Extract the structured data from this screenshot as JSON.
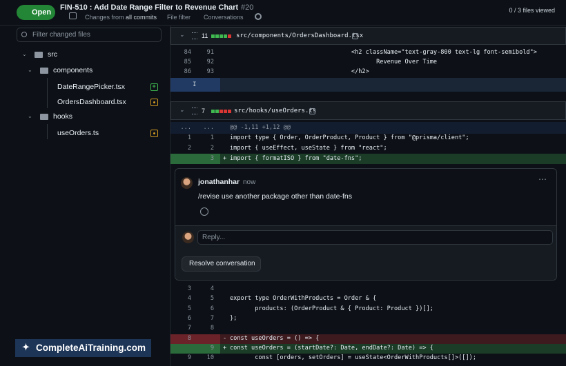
{
  "header": {
    "state": "Open",
    "title": "FIN-510 : Add Date Range Filter to Revenue Chart",
    "number": "#20",
    "changes_label": "Changes from",
    "changes_value": "all commits",
    "file_filter": "File filter",
    "conversations": "Conversations",
    "files_viewed": "0 / 3 files viewed"
  },
  "sidebar": {
    "filter_placeholder": "Filter changed files",
    "tree": [
      {
        "label": "src",
        "children": [
          {
            "label": "components",
            "children": [
              {
                "label": "DateRangePicker.tsx",
                "status": "added"
              },
              {
                "label": "OrdersDashboard.tsx",
                "status": "modified"
              }
            ]
          },
          {
            "label": "hooks",
            "children": [
              {
                "label": "useOrders.ts",
                "status": "modified"
              }
            ]
          }
        ]
      }
    ]
  },
  "files": [
    {
      "changes": 11,
      "path": "src/components/OrdersDashboard.tsx",
      "lines": [
        {
          "old": 84,
          "new": 91,
          "code": "                                  <h2 className=\"text-gray-800 text-lg font-semibold\">"
        },
        {
          "old": 85,
          "new": 92,
          "code": "                                         Revenue Over Time"
        },
        {
          "old": 86,
          "new": 93,
          "code": "                                  </h2>"
        }
      ]
    },
    {
      "changes": 7,
      "path": "src/hooks/useOrders.ts",
      "hunk": {
        "old": "...",
        "new": "...",
        "text": "@@ -1,11 +1,12 @@"
      },
      "lines_before": [
        {
          "old": 1,
          "new": 1,
          "code": "import type { Order, OrderProduct, Product } from \"@prisma/client\";"
        },
        {
          "old": 2,
          "new": 2,
          "code": "import { useEffect, useState } from \"react\";"
        },
        {
          "new": 3,
          "sign": "+",
          "code": "import { formatISO } from \"date-fns\";"
        }
      ],
      "comment": {
        "author": "jonathanhar",
        "time": "now",
        "body": "/revise use another package other than date-fns",
        "reply_placeholder": "Reply...",
        "resolve": "Resolve conversation"
      },
      "lines_after": [
        {
          "old": 3,
          "new": 4
        },
        {
          "old": 4,
          "new": 5,
          "code": "export type OrderWithProducts = Order & {"
        },
        {
          "old": 5,
          "new": 6,
          "code": "       products: (OrderProduct & { Product: Product })[];"
        },
        {
          "old": 6,
          "new": 7,
          "code": "};"
        },
        {
          "old": 7,
          "new": 8
        },
        {
          "old": 8,
          "sign": "-",
          "code": "const useOrders = () => {"
        },
        {
          "new": 9,
          "sign": "+",
          "code": "const useOrders = (startDate?: Date, endDate?: Date) => {"
        },
        {
          "old": 9,
          "new": 10,
          "code": "       const [orders, setOrders] = useState<OrderWithProducts[]>([]);"
        }
      ]
    }
  ],
  "watermark": "CompleteAiTraining.com"
}
